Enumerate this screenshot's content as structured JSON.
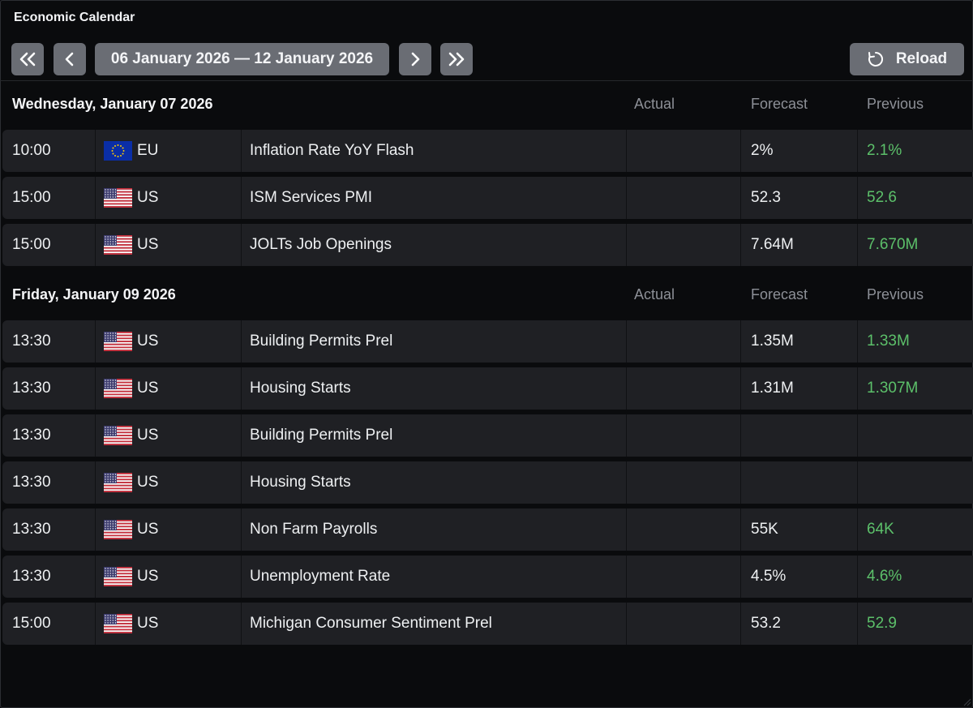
{
  "window": {
    "title": "Economic Calendar"
  },
  "toolbar": {
    "range": "06 January 2026 — 12 January 2026",
    "reload_label": "Reload"
  },
  "columns": {
    "actual": "Actual",
    "forecast": "Forecast",
    "previous": "Previous"
  },
  "colors": {
    "previous_value": "#5cc06a",
    "button": "#6a6d74",
    "row": "#1f2024"
  },
  "days": [
    {
      "title": "Wednesday, January 07 2026",
      "events": [
        {
          "time": "10:00",
          "country": "EU",
          "flag": "eu-flag",
          "name": "Inflation Rate YoY Flash",
          "actual": "",
          "forecast": "2%",
          "previous": "2.1%"
        },
        {
          "time": "15:00",
          "country": "US",
          "flag": "us-flag",
          "name": "ISM Services PMI",
          "actual": "",
          "forecast": "52.3",
          "previous": "52.6"
        },
        {
          "time": "15:00",
          "country": "US",
          "flag": "us-flag",
          "name": "JOLTs Job Openings",
          "actual": "",
          "forecast": "7.64M",
          "previous": "7.670M"
        }
      ]
    },
    {
      "title": "Friday, January 09 2026",
      "events": [
        {
          "time": "13:30",
          "country": "US",
          "flag": "us-flag",
          "name": "Building Permits Prel",
          "actual": "",
          "forecast": "1.35M",
          "previous": "1.33M"
        },
        {
          "time": "13:30",
          "country": "US",
          "flag": "us-flag",
          "name": "Housing Starts",
          "actual": "",
          "forecast": "1.31M",
          "previous": "1.307M"
        },
        {
          "time": "13:30",
          "country": "US",
          "flag": "us-flag",
          "name": "Building Permits Prel",
          "actual": "",
          "forecast": "",
          "previous": ""
        },
        {
          "time": "13:30",
          "country": "US",
          "flag": "us-flag",
          "name": "Housing Starts",
          "actual": "",
          "forecast": "",
          "previous": ""
        },
        {
          "time": "13:30",
          "country": "US",
          "flag": "us-flag",
          "name": "Non Farm Payrolls",
          "actual": "",
          "forecast": "55K",
          "previous": "64K"
        },
        {
          "time": "13:30",
          "country": "US",
          "flag": "us-flag",
          "name": "Unemployment Rate",
          "actual": "",
          "forecast": "4.5%",
          "previous": "4.6%"
        },
        {
          "time": "15:00",
          "country": "US",
          "flag": "us-flag",
          "name": "Michigan Consumer Sentiment Prel",
          "actual": "",
          "forecast": "53.2",
          "previous": "52.9"
        }
      ]
    }
  ]
}
